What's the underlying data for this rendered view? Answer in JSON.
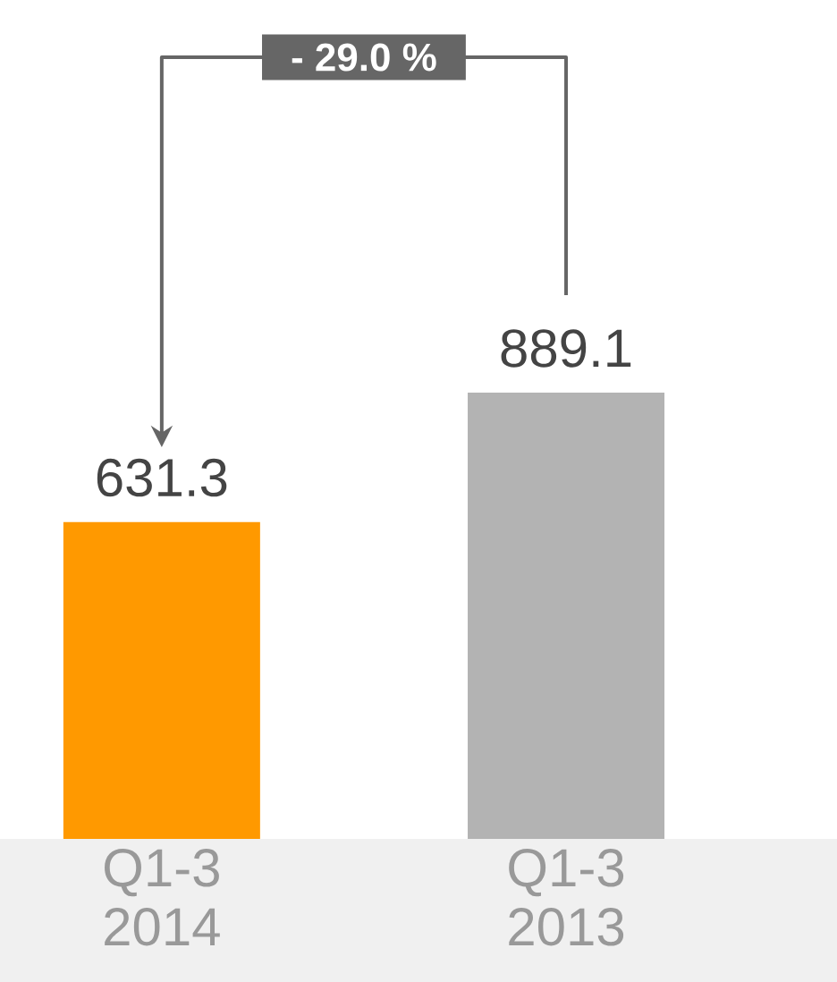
{
  "chart_data": {
    "type": "bar",
    "categories": [
      "Q1-3 2014",
      "Q1-3 2013"
    ],
    "values": [
      631.3,
      889.1
    ],
    "colors": [
      "#ff9900",
      "#b3b3b3"
    ],
    "data_labels": true,
    "annotations": [
      "- 29.0 %"
    ]
  }
}
